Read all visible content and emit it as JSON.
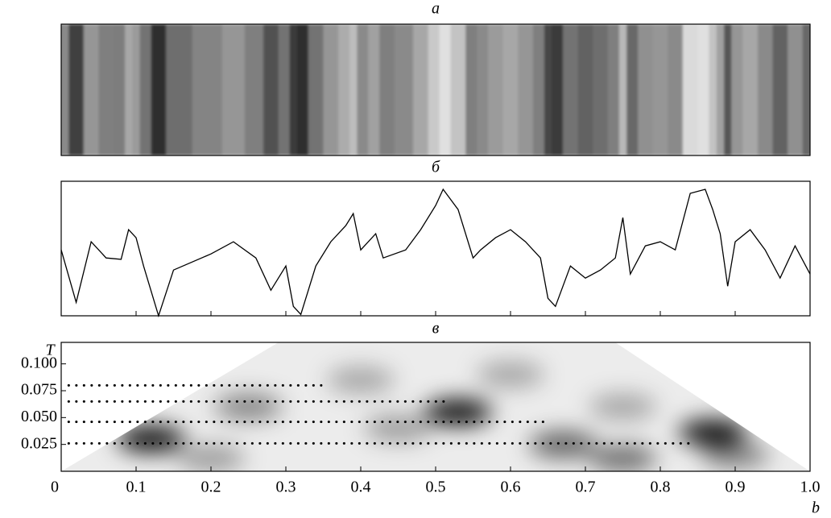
{
  "chart_data": [
    {
      "type": "stripes",
      "title": "a"
    },
    {
      "type": "line",
      "title": "б",
      "x": [
        0,
        0.02,
        0.04,
        0.06,
        0.08,
        0.09,
        0.1,
        0.11,
        0.13,
        0.15,
        0.2,
        0.23,
        0.26,
        0.28,
        0.3,
        0.31,
        0.32,
        0.34,
        0.36,
        0.38,
        0.39,
        0.4,
        0.42,
        0.43,
        0.46,
        0.48,
        0.5,
        0.51,
        0.53,
        0.55,
        0.56,
        0.58,
        0.6,
        0.62,
        0.64,
        0.65,
        0.66,
        0.68,
        0.7,
        0.72,
        0.74,
        0.75,
        0.76,
        0.78,
        0.8,
        0.82,
        0.84,
        0.86,
        0.87,
        0.88,
        0.89,
        0.9,
        0.92,
        0.94,
        0.96,
        0.98,
        1.0
      ],
      "values": [
        0.49,
        0.1,
        0.55,
        0.43,
        0.42,
        0.64,
        0.58,
        0.37,
        0.0,
        0.34,
        0.46,
        0.55,
        0.43,
        0.19,
        0.37,
        0.07,
        0.01,
        0.37,
        0.55,
        0.67,
        0.76,
        0.49,
        0.61,
        0.43,
        0.49,
        0.64,
        0.82,
        0.94,
        0.79,
        0.43,
        0.49,
        0.58,
        0.64,
        0.55,
        0.43,
        0.13,
        0.07,
        0.37,
        0.28,
        0.34,
        0.43,
        0.73,
        0.31,
        0.52,
        0.55,
        0.49,
        0.91,
        0.94,
        0.79,
        0.61,
        0.22,
        0.55,
        0.64,
        0.49,
        0.28,
        0.52,
        0.31
      ],
      "xlim": [
        0,
        1
      ],
      "ylim": [
        0,
        1
      ],
      "xticks": [
        0.1,
        0.2,
        0.3,
        0.4,
        0.5,
        0.6,
        0.7,
        0.8,
        0.9
      ],
      "color": "#000000"
    },
    {
      "type": "heatmap",
      "title": "в",
      "xlabel": "b",
      "ylabel": "T",
      "xlim": [
        0,
        1
      ],
      "ylim": [
        0,
        0.12
      ],
      "xticks": [
        0,
        0.1,
        0.2,
        0.3,
        0.4,
        0.5,
        0.6,
        0.7,
        0.8,
        0.9,
        {
          "value": 1,
          "label": "1.0"
        }
      ],
      "yticks": [
        0.025,
        {
          "value": 0.05,
          "label": "0.050"
        },
        0.075,
        {
          "value": 0.1,
          "label": "0.100"
        }
      ],
      "boundary": {
        "x": [
          0,
          0.29,
          0.74,
          1
        ],
        "y": [
          0,
          0.12,
          0.12,
          0
        ]
      },
      "blobs": [
        {
          "x": 0.12,
          "y": 0.03,
          "value": 0.95
        },
        {
          "x": 0.53,
          "y": 0.055,
          "value": 0.95
        },
        {
          "x": 0.87,
          "y": 0.036,
          "value": 0.95
        },
        {
          "x": 0.67,
          "y": 0.025,
          "value": 0.6
        },
        {
          "x": 0.25,
          "y": 0.06,
          "value": 0.45
        },
        {
          "x": 0.4,
          "y": 0.085,
          "value": 0.3
        },
        {
          "x": 0.6,
          "y": 0.09,
          "value": 0.3
        },
        {
          "x": 0.75,
          "y": 0.012,
          "value": 0.55
        },
        {
          "x": 0.9,
          "y": 0.015,
          "value": 0.45
        },
        {
          "x": 0.2,
          "y": 0.012,
          "value": 0.35
        },
        {
          "x": 0.45,
          "y": 0.04,
          "value": 0.35
        },
        {
          "x": 0.75,
          "y": 0.06,
          "value": 0.3
        }
      ],
      "lines": [
        {
          "y": 0.08,
          "x": [
            0.01,
            0.35
          ]
        },
        {
          "y": 0.065,
          "x": [
            0.01,
            0.52
          ]
        },
        {
          "y": 0.046,
          "x": [
            0.01,
            0.65
          ]
        },
        {
          "y": 0.026,
          "x": [
            0.01,
            0.84
          ]
        }
      ]
    }
  ]
}
